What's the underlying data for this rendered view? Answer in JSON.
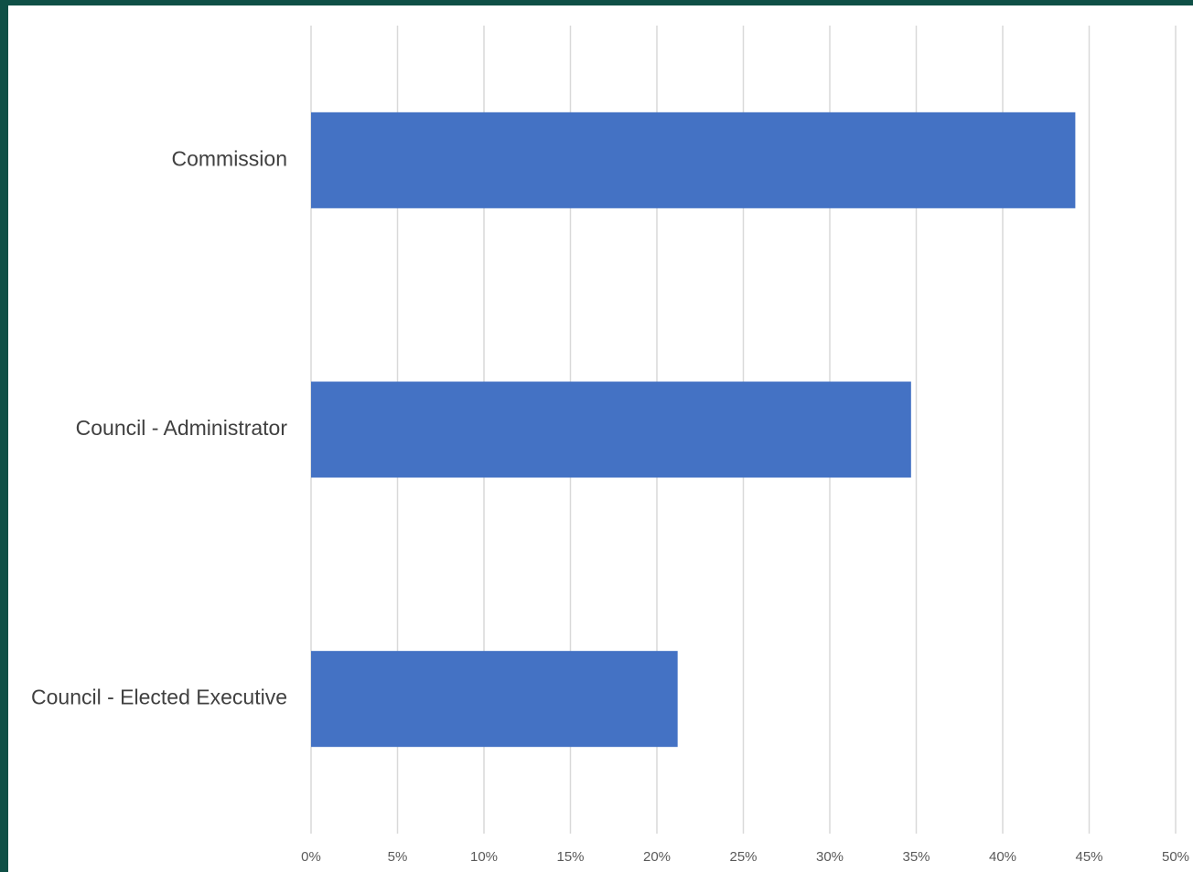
{
  "chart_data": {
    "type": "bar",
    "orientation": "horizontal",
    "categories": [
      "Commission",
      "Council - Administrator",
      "Council - Elected Executive"
    ],
    "values": [
      0.442,
      0.347,
      0.212
    ],
    "xlim": [
      0,
      0.5
    ],
    "x_ticks": [
      0,
      0.05,
      0.1,
      0.15,
      0.2,
      0.25,
      0.3,
      0.35,
      0.4,
      0.45,
      0.5
    ],
    "x_tick_labels": [
      "0%",
      "5%",
      "10%",
      "15%",
      "20%",
      "25%",
      "30%",
      "35%",
      "40%",
      "45%",
      "50%"
    ],
    "grid": "vertical",
    "legend": "none",
    "title": "",
    "xlabel": "",
    "ylabel": ""
  },
  "colors": {
    "bar": "#4472c4",
    "gridline": "#d9d9d9",
    "background": "#ffffff",
    "frame": "#0f5046"
  }
}
